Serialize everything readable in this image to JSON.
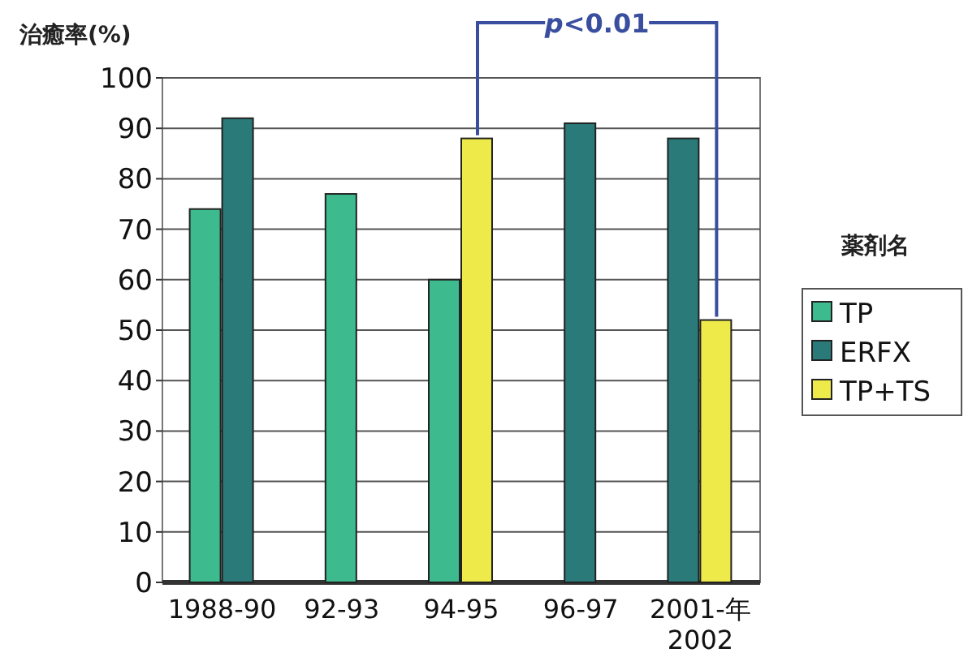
{
  "chart_data": {
    "type": "bar",
    "ylabel": "治癒率(%)",
    "legend_title": "薬剤名",
    "annotations": [
      "p<0.01"
    ],
    "categories": [
      "1988-90",
      "92-93",
      "94-95",
      "96-97",
      "2001-年\n2002"
    ],
    "series": [
      {
        "name": "TP",
        "color": "#3dbb8e",
        "values": [
          74,
          77,
          60,
          null,
          null
        ]
      },
      {
        "name": "ERFX",
        "color": "#2a7a7a",
        "values": [
          92,
          null,
          null,
          91,
          88
        ]
      },
      {
        "name": "TP+TS",
        "color": "#eeea4a",
        "values": [
          null,
          null,
          88,
          null,
          52
        ]
      }
    ],
    "ylim": [
      0,
      100
    ],
    "yticks": [
      0,
      10,
      20,
      30,
      40,
      50,
      60,
      70,
      80,
      90,
      100
    ],
    "grid": "y",
    "legend": "right"
  }
}
